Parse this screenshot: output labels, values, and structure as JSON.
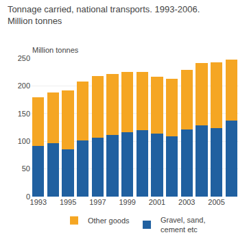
{
  "chart_data": {
    "type": "bar",
    "title": "Tonnage carried, national transports. 1993-2006.",
    "subtitle": "Million tonnes",
    "ylabel": "Million tonnes",
    "categories": [
      "1993",
      null,
      "1995",
      null,
      "1997",
      null,
      "1999",
      null,
      "2001",
      null,
      "2003",
      null,
      "2005",
      null
    ],
    "series": [
      {
        "name": "Gravel, sand,\ncement etc",
        "color": "#2060A0",
        "values": [
          92,
          96,
          86,
          101,
          106,
          111,
          116,
          120,
          114,
          109,
          121,
          129,
          124,
          137
        ]
      },
      {
        "name": "Other goods",
        "color": "#F5A623",
        "values": [
          88,
          92,
          106,
          107,
          112,
          111,
          109,
          105,
          102,
          104,
          108,
          112,
          119,
          110
        ]
      }
    ],
    "stacked": true,
    "ylim": [
      0,
      250
    ],
    "yticks": [
      0,
      50,
      100,
      150,
      200,
      250
    ],
    "grid": true,
    "legend": "bottom"
  }
}
